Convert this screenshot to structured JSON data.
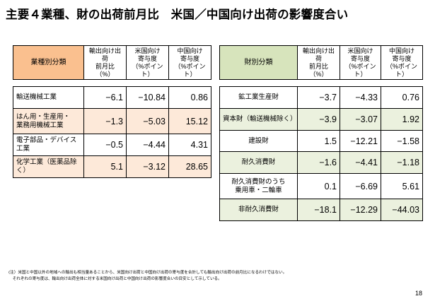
{
  "title": "主要４業種、財の出荷前月比　米国／中国向け出荷の影響度合い",
  "left_table": {
    "headers": [
      "業種別分類",
      "輸出向け出荷\n前月比\n（%）",
      "米国向け\n寄与度\n（%ポイント）",
      "中国向け\n寄与度\n（%ポイント）"
    ],
    "rows": [
      {
        "label": "輸送機械工業",
        "v1": "−6.1",
        "v2": "−10.84",
        "v3": "0.86"
      },
      {
        "label": "はん用・生産用・\n業務用機械工業",
        "v1": "−1.3",
        "v2": "−5.03",
        "v3": "15.12"
      },
      {
        "label": "電子部品・デバイス工業",
        "v1": "−0.5",
        "v2": "−4.44",
        "v3": "4.31"
      },
      {
        "label": "化学工業（医薬品除く）",
        "v1": "5.1",
        "v2": "−3.12",
        "v3": "28.65"
      }
    ]
  },
  "right_table": {
    "headers": [
      "財別分類",
      "輸出向け出荷\n前月比\n（%）",
      "米国向け\n寄与度\n（%ポイント）",
      "中国向け\n寄与度\n（%ポイント）"
    ],
    "rows": [
      {
        "label": "鉱工業生産財",
        "v1": "−3.7",
        "v2": "−4.33",
        "v3": "0.76"
      },
      {
        "label": "資本財（輸送機械除く）",
        "v1": "−3.9",
        "v2": "−3.07",
        "v3": "1.92"
      },
      {
        "label": "建設財",
        "v1": "1.5",
        "v2": "−12.21",
        "v3": "−1.58"
      },
      {
        "label": "耐久消費財",
        "v1": "−1.6",
        "v2": "−4.41",
        "v3": "−1.18"
      },
      {
        "label": "耐久消費財のうち\n乗用車・二輪車",
        "v1": "0.1",
        "v2": "−6.69",
        "v3": "5.61"
      },
      {
        "label": "非耐久消費財",
        "v1": "−18.1",
        "v2": "−12.29",
        "v3": "−44.03"
      }
    ]
  },
  "note": {
    "line1": "(注）米国と中国以外の地域への輸出も相当量あることから、米国向け出荷と中国向け出荷の寄与度を合計しても輸出向け出荷の前月比になるわけではない。",
    "line2": "　それぞれの寄与度は、輸出向け出荷全体に対する米国向け出荷と中国向け出荷の影響度合いの目安として示している。"
  },
  "page_number": "18"
}
